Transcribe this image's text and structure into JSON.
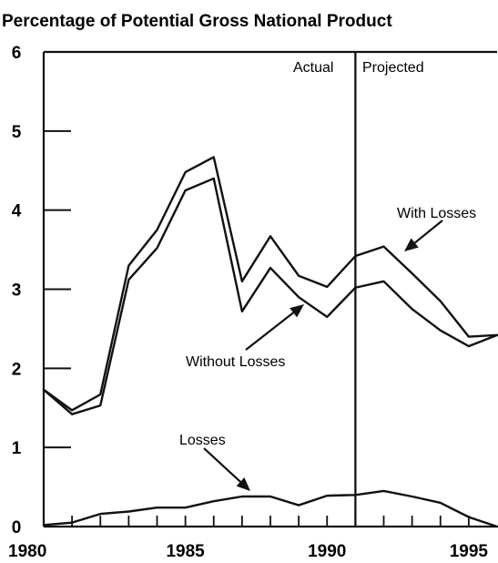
{
  "chart_data": {
    "type": "line",
    "title": "Percentage of Potential Gross National Product",
    "x": [
      1980,
      1981,
      1982,
      1983,
      1984,
      1985,
      1986,
      1987,
      1988,
      1989,
      1990,
      1991,
      1992,
      1993,
      1994,
      1995,
      1996
    ],
    "series": [
      {
        "name": "With Losses",
        "values": [
          1.73,
          1.47,
          1.67,
          3.3,
          3.75,
          4.48,
          4.67,
          3.1,
          3.67,
          3.17,
          3.03,
          3.42,
          3.54,
          3.2,
          2.85,
          2.4,
          2.42
        ]
      },
      {
        "name": "Without Losses",
        "values": [
          1.73,
          1.42,
          1.53,
          3.12,
          3.52,
          4.25,
          4.4,
          2.72,
          3.27,
          2.9,
          2.65,
          3.02,
          3.1,
          2.75,
          2.48,
          2.28,
          2.42
        ]
      },
      {
        "name": "Losses",
        "values": [
          0.02,
          0.05,
          0.16,
          0.19,
          0.24,
          0.24,
          0.32,
          0.38,
          0.38,
          0.27,
          0.39,
          0.4,
          0.45,
          0.38,
          0.3,
          0.12,
          0.0
        ]
      }
    ],
    "xlim": [
      1980,
      1996
    ],
    "ylim": [
      0,
      6
    ],
    "x_ticks": [
      1980,
      1985,
      1990,
      1995
    ],
    "y_ticks": [
      0,
      1,
      2,
      3,
      4,
      5,
      6
    ],
    "divider_x": 1991,
    "annotations": {
      "actual": "Actual",
      "projected": "Projected",
      "with_losses": "With Losses",
      "without_losses": "Without Losses",
      "losses": "Losses"
    },
    "line_color": "#111111",
    "grid": false
  }
}
